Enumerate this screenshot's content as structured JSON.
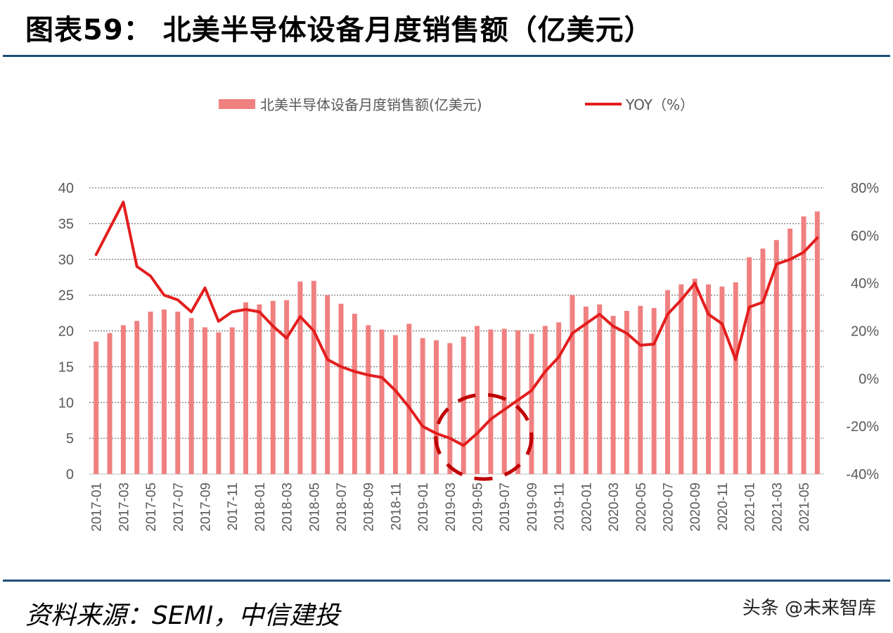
{
  "header": {
    "title": "图表59：  北美半导体设备月度销售额（亿美元）"
  },
  "footer": {
    "source": "资料来源：SEMI，中信建投",
    "watermark": "头条 @未来智库"
  },
  "colors": {
    "bar": "#f08080",
    "line": "#e31e1e",
    "circle": "#c00000",
    "rule": "#1f4e79"
  },
  "chart_data": {
    "type": "bar",
    "title": "",
    "series": [
      {
        "name": "北美半导体设备月度销售额(亿美元)",
        "type": "bar",
        "axis": "left",
        "values": [
          18.5,
          19.7,
          20.8,
          21.4,
          22.7,
          23.0,
          22.7,
          21.8,
          20.5,
          19.8,
          20.5,
          24.0,
          23.7,
          24.2,
          24.3,
          26.9,
          27.0,
          25.0,
          23.8,
          22.4,
          20.8,
          20.2,
          19.4,
          21.0,
          19.0,
          18.7,
          18.3,
          19.2,
          20.7,
          20.2,
          20.3,
          20.1,
          19.6,
          20.7,
          21.2,
          25.0,
          23.4,
          23.7,
          22.1,
          22.8,
          23.5,
          23.2,
          25.7,
          26.5,
          27.3,
          26.5,
          26.2,
          26.8,
          30.3,
          31.5,
          32.7,
          34.3,
          36.0,
          36.7
        ]
      },
      {
        "name": "YOY（%）",
        "type": "line",
        "axis": "right",
        "values": [
          52,
          63,
          74,
          47,
          43,
          35,
          33,
          28,
          38,
          24,
          28,
          29,
          28,
          22,
          17,
          26,
          20,
          8,
          5,
          3,
          1.5,
          0.5,
          -5,
          -12,
          -20,
          -23,
          -25,
          -28,
          -23,
          -17,
          -13,
          -9,
          -5,
          3,
          9,
          19,
          23,
          27,
          22,
          19,
          14,
          14.5,
          27,
          33,
          40,
          27,
          23,
          8,
          30,
          32,
          48,
          50,
          53,
          59
        ]
      }
    ],
    "categories": [
      "2017-01",
      "2017-02",
      "2017-03",
      "2017-04",
      "2017-05",
      "2017-06",
      "2017-07",
      "2017-08",
      "2017-09",
      "2017-10",
      "2017-11",
      "2017-12",
      "2018-01",
      "2018-02",
      "2018-03",
      "2018-04",
      "2018-05",
      "2018-06",
      "2018-07",
      "2018-08",
      "2018-09",
      "2018-10",
      "2018-11",
      "2018-12",
      "2019-01",
      "2019-02",
      "2019-03",
      "2019-04",
      "2019-05",
      "2019-06",
      "2019-07",
      "2019-08",
      "2019-09",
      "2019-10",
      "2019-11",
      "2019-12",
      "2020-01",
      "2020-02",
      "2020-03",
      "2020-04",
      "2020-05",
      "2020-06",
      "2020-07",
      "2020-08",
      "2020-09",
      "2020-10",
      "2020-11",
      "2020-12",
      "2021-01",
      "2021-02",
      "2021-03",
      "2021-04",
      "2021-05",
      "2021-06"
    ],
    "x_tick_labels": [
      "2017-01",
      "2017-03",
      "2017-05",
      "2017-07",
      "2017-09",
      "2017-11",
      "2018-01",
      "2018-03",
      "2018-05",
      "2018-07",
      "2018-09",
      "2018-11",
      "2019-01",
      "2019-03",
      "2019-05",
      "2019-07",
      "2019-09",
      "2019-11",
      "2020-01",
      "2020-03",
      "2020-05",
      "2020-07",
      "2020-09",
      "2020-11",
      "2021-01",
      "2021-03",
      "2021-05"
    ],
    "y_left": {
      "ylim": [
        0,
        40
      ],
      "ticks": [
        "0",
        "5",
        "10",
        "15",
        "20",
        "25",
        "30",
        "35",
        "40"
      ]
    },
    "y_right": {
      "ylim": [
        -40,
        80
      ],
      "ticks": [
        "-40%",
        "-20%",
        "0%",
        "20%",
        "40%",
        "60%",
        "80%"
      ]
    },
    "grid": true,
    "legend": "top",
    "annotation": "dashed circle around 2019-03 – 2019-09 trough"
  }
}
